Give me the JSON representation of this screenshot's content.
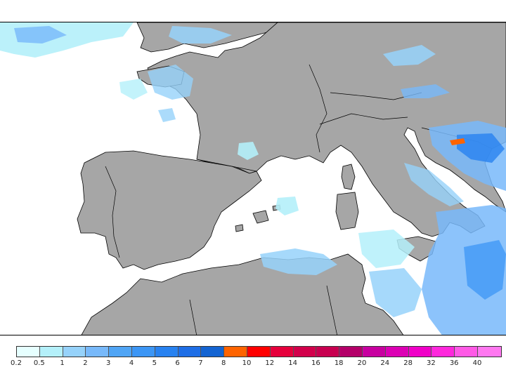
{
  "map": {
    "land_color": "#a6a6a6",
    "sea_color": "#ffffff",
    "border_color": "#000000",
    "precip_colors": {
      "p02": "#e6ffff",
      "p05": "#b4f0fa",
      "p1": "#96d2fa",
      "p2": "#78b9fa",
      "p3": "#50a5f5",
      "p4": "#3c96f5",
      "p5": "#2882f0",
      "p6": "#1e6ee6",
      "p7": "#1464d2",
      "p8": "#ff6400"
    }
  },
  "legend": {
    "colors": [
      "#e6ffff",
      "#b4f0fa",
      "#96d2fa",
      "#78b9fa",
      "#50a5f5",
      "#3c96f5",
      "#2882f0",
      "#1e6ee6",
      "#1464d2",
      "#ff6400",
      "#ff0000",
      "#e6003c",
      "#d2004b",
      "#c80050",
      "#b40069",
      "#c800a0",
      "#dc00b4",
      "#f000c8",
      "#ff28dc",
      "#ff5ae6",
      "#ff78f0"
    ],
    "labels": [
      "0.2",
      "0.5",
      "1",
      "2",
      "3",
      "4",
      "5",
      "6",
      "7",
      "8",
      "10",
      "12",
      "14",
      "16",
      "18",
      "20",
      "24",
      "28",
      "32",
      "36",
      "40"
    ]
  }
}
